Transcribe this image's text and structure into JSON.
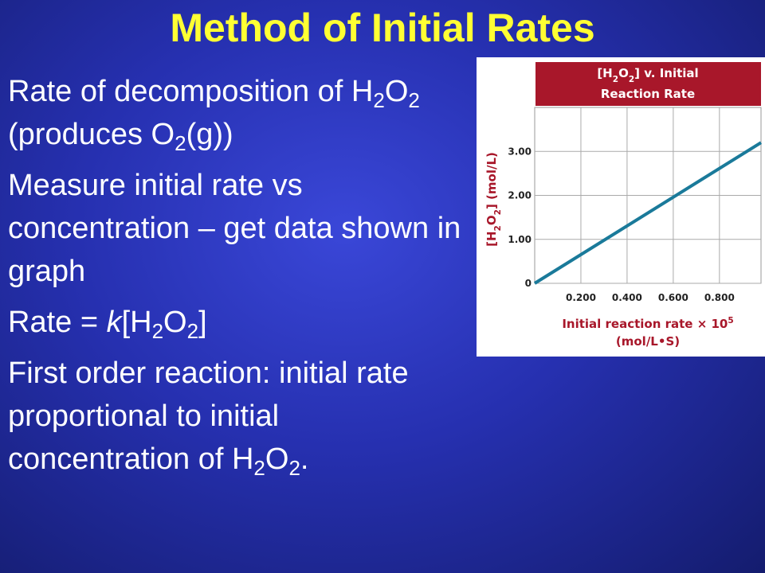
{
  "title": "Method of Initial Rates",
  "bullets": [
    [
      {
        "text": "Rate of decomposition of H"
      },
      {
        "sub": "2"
      },
      {
        "text": "O"
      },
      {
        "sub": "2"
      },
      {
        "text": " (produces O"
      },
      {
        "sub": "2"
      },
      {
        "text": "(g))"
      }
    ],
    [
      {
        "text": "Measure initial rate vs concentration – get data shown in graph"
      }
    ],
    [
      {
        "text": "Rate = "
      },
      {
        "italic": "k"
      },
      {
        "text": "[H"
      },
      {
        "sub": "2"
      },
      {
        "text": "O"
      },
      {
        "sub": "2"
      },
      {
        "text": "]"
      }
    ],
    [
      {
        "text": "First order reaction: initial rate proportional to initial concentration of H"
      },
      {
        "sub": "2"
      },
      {
        "text": "O"
      },
      {
        "sub": "2"
      },
      {
        "text": "."
      }
    ]
  ],
  "chart_data": {
    "type": "line",
    "title": [
      {
        "text": "[H"
      },
      {
        "sub": "2"
      },
      {
        "text": "O"
      },
      {
        "sub": "2"
      },
      {
        "text": "] v. Initial Reaction Rate"
      }
    ],
    "y_label": [
      {
        "text": "[H"
      },
      {
        "sub": "2"
      },
      {
        "text": "O"
      },
      {
        "sub": "2"
      },
      {
        "text": "] (mol/L)"
      }
    ],
    "x_label": [
      {
        "text": "Initial reaction rate × 10"
      },
      {
        "sup": "5"
      },
      {
        "text": " (mol/L•S)"
      }
    ],
    "x": [
      0,
      0.98
    ],
    "values": [
      0,
      3.2
    ],
    "color": "#1a7a9a",
    "xlim": [
      0,
      0.98
    ],
    "ylim": [
      0,
      4
    ],
    "xticks": [
      {
        "value": 0.2,
        "label": "0.200"
      },
      {
        "value": 0.4,
        "label": "0.400"
      },
      {
        "value": 0.6,
        "label": "0.600"
      },
      {
        "value": 0.8,
        "label": "0.800"
      }
    ],
    "yticks": [
      0,
      {
        "value": 1,
        "label": "1.00"
      },
      {
        "value": 2,
        "label": "2.00"
      },
      {
        "value": 3,
        "label": "3.00"
      }
    ],
    "grid": true
  }
}
